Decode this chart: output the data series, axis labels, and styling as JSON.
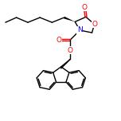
{
  "background_color": "#ffffff",
  "bond_color": "#000000",
  "atom_colors": {
    "O": "#ff0000",
    "N": "#0000ff"
  },
  "lw": 1.0,
  "fs": 6.5,
  "figsize": [
    1.52,
    1.52
  ],
  "dpi": 100
}
